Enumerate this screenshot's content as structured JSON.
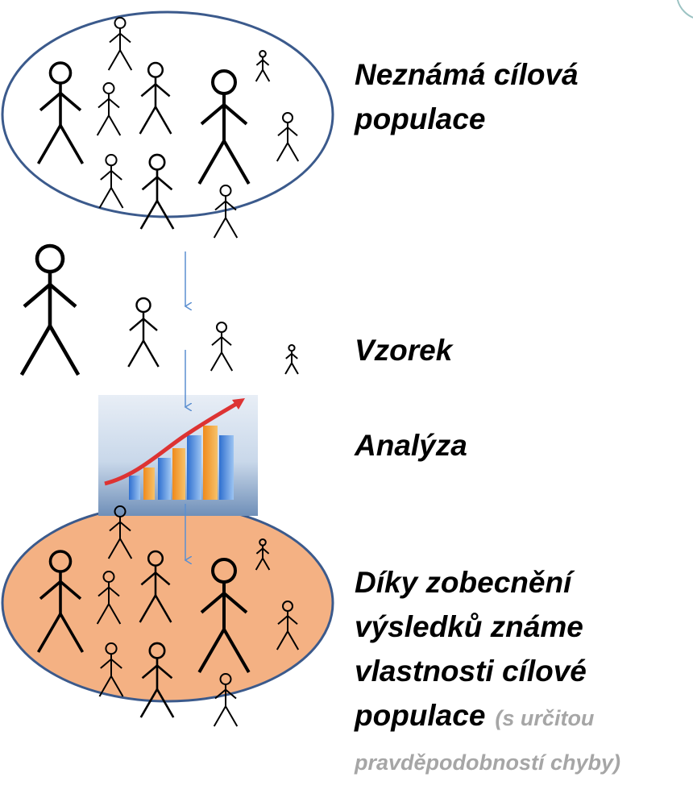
{
  "population": [
    "Neznámá cílová",
    "populace"
  ],
  "sample": "Vzorek",
  "analysis": "Analýza",
  "conclusion": [
    "Díky zobecnění",
    "výsledků známe",
    "vlastnosti cílové",
    "populace"
  ],
  "note": [
    "(s určitou",
    "pravděpodobností chyby)"
  ]
}
